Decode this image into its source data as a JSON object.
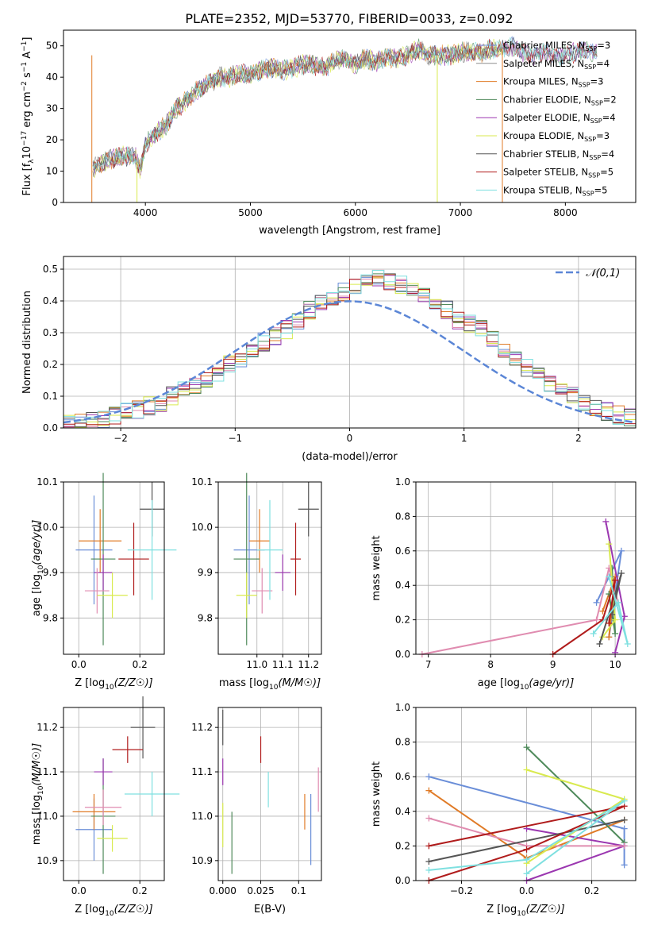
{
  "figure": {
    "title": "PLATE=2352, MJD=53770, FIBERID=0033, z=0.092",
    "legend_labels": [
      [
        "Chabrier MILES, N",
        "=3"
      ],
      [
        "Salpeter MILES, N",
        "=4"
      ],
      [
        "Kroupa MILES, N",
        "=3"
      ],
      [
        "Chabrier ELODIE, N",
        "=2"
      ],
      [
        "Salpeter ELODIE, N",
        "=4"
      ],
      [
        "Kroupa ELODIE, N",
        "=3"
      ],
      [
        "Chabrier STELIB, N",
        "=4"
      ],
      [
        "Salpeter STELIB, N",
        "=5"
      ],
      [
        "Kroupa STELIB, N",
        "=5"
      ]
    ],
    "legend_sub": "SSP",
    "colors": [
      "#6a8ed8",
      "#8e8e8e",
      "#e07b27",
      "#4f8a5b",
      "#9b37b0",
      "#d9ea4f",
      "#555555",
      "#b01c1c",
      "#7fe0e0"
    ],
    "err_colors": [
      "#6a8ed8",
      "#e07b27",
      "#4f8a5b",
      "#9b37b0",
      "#e08cb0",
      "#d9ea4f",
      "#555555",
      "#b01c1c",
      "#7fe0e0"
    ]
  },
  "chart_data": [
    {
      "type": "line",
      "title": "PLATE=2352, MJD=53770, FIBERID=0033, z=0.092",
      "xlabel": "wavelength [Angstrom, rest frame]",
      "ylabel": "Flux [f",
      "xlim": [
        3220,
        8670
      ],
      "ylim": [
        0,
        55
      ],
      "xticks": [
        4000,
        5000,
        6000,
        7000,
        8000
      ],
      "yticks": [
        0,
        10,
        20,
        30,
        40,
        50
      ],
      "continuum": [
        [
          3500,
          11
        ],
        [
          3600,
          13
        ],
        [
          3700,
          14
        ],
        [
          3800,
          15
        ],
        [
          3900,
          15
        ],
        [
          3950,
          10
        ],
        [
          4000,
          19
        ],
        [
          4100,
          22
        ],
        [
          4200,
          25
        ],
        [
          4300,
          30
        ],
        [
          4400,
          33
        ],
        [
          4500,
          36
        ],
        [
          4600,
          38
        ],
        [
          4700,
          40
        ],
        [
          4800,
          40
        ],
        [
          4900,
          41
        ],
        [
          5000,
          41
        ],
        [
          5100,
          42
        ],
        [
          5200,
          43
        ],
        [
          5300,
          42
        ],
        [
          5400,
          43
        ],
        [
          5500,
          44
        ],
        [
          5600,
          44
        ],
        [
          5700,
          43
        ],
        [
          5800,
          45
        ],
        [
          5900,
          46
        ],
        [
          6000,
          44
        ],
        [
          6100,
          46
        ],
        [
          6200,
          45
        ],
        [
          6300,
          46
        ],
        [
          6400,
          46
        ],
        [
          6500,
          47
        ],
        [
          6600,
          49
        ],
        [
          6700,
          47
        ],
        [
          6800,
          47
        ],
        [
          6900,
          47
        ],
        [
          7000,
          48
        ],
        [
          7100,
          48
        ],
        [
          7200,
          48
        ],
        [
          7300,
          49
        ],
        [
          7400,
          49
        ],
        [
          7500,
          50
        ],
        [
          7600,
          48
        ],
        [
          7700,
          47
        ],
        [
          7800,
          48
        ],
        [
          7900,
          47
        ],
        [
          8000,
          47
        ],
        [
          8100,
          48
        ],
        [
          8200,
          49
        ],
        [
          8300,
          47
        ]
      ],
      "grid": false,
      "legend": "top-right"
    },
    {
      "type": "bar",
      "xlabel": "(data-model)/error",
      "ylabel": "Normed distribution",
      "xlim": [
        -2.5,
        2.5
      ],
      "ylim": [
        0,
        0.54
      ],
      "xticks": [
        -2,
        -1,
        0,
        1,
        2
      ],
      "yticks": [
        0.0,
        0.1,
        0.2,
        0.3,
        0.4,
        0.5
      ],
      "bin_width": 0.1,
      "bin_start": -2.5,
      "histogram_base": [
        0.02,
        0.02,
        0.03,
        0.03,
        0.04,
        0.05,
        0.06,
        0.07,
        0.08,
        0.1,
        0.12,
        0.13,
        0.15,
        0.17,
        0.2,
        0.22,
        0.25,
        0.27,
        0.29,
        0.31,
        0.34,
        0.37,
        0.39,
        0.41,
        0.43,
        0.45,
        0.47,
        0.47,
        0.46,
        0.45,
        0.43,
        0.41,
        0.39,
        0.37,
        0.34,
        0.33,
        0.32,
        0.28,
        0.25,
        0.22,
        0.19,
        0.16,
        0.14,
        0.12,
        0.1,
        0.08,
        0.06,
        0.05,
        0.04,
        0.03
      ],
      "normal_curve_label": "𝒩(0,1)",
      "grid": true,
      "legend": "top-right"
    },
    {
      "type": "scatter",
      "xlabel": "Z [log",
      "ylabel": "age  [log",
      "xlim": [
        -0.05,
        0.28
      ],
      "ylim": [
        9.72,
        10.1
      ],
      "xticks": [
        0.0,
        0.2
      ],
      "yticks": [
        9.8,
        9.9,
        10.0,
        10.1
      ],
      "points": [
        [
          0.05,
          9.95,
          0.06,
          0.12
        ],
        [
          0.07,
          9.97,
          0.07,
          0.07
        ],
        [
          0.08,
          9.93,
          0.04,
          0.19
        ],
        [
          0.08,
          9.9,
          0.03,
          0.04
        ],
        [
          0.06,
          9.86,
          0.04,
          0.05
        ],
        [
          0.11,
          9.85,
          0.05,
          0.05
        ],
        [
          0.24,
          10.04,
          0.04,
          0.06
        ],
        [
          0.18,
          9.93,
          0.05,
          0.08
        ],
        [
          0.24,
          9.95,
          0.08,
          0.11
        ]
      ],
      "grid": true
    },
    {
      "type": "scatter",
      "xlabel": "mass [log",
      "ylabel": "",
      "xlim": [
        10.85,
        11.25
      ],
      "ylim": [
        9.72,
        10.1
      ],
      "xticks": [
        11.0,
        11.1,
        11.2
      ],
      "yticks": [
        9.8,
        9.9,
        10.0,
        10.1
      ],
      "points": [
        [
          10.97,
          9.95,
          0.06,
          0.12
        ],
        [
          11.01,
          9.97,
          0.04,
          0.07
        ],
        [
          10.96,
          9.93,
          0.05,
          0.19
        ],
        [
          11.1,
          9.9,
          0.03,
          0.04
        ],
        [
          11.02,
          9.86,
          0.04,
          0.05
        ],
        [
          10.96,
          9.85,
          0.04,
          0.05
        ],
        [
          11.2,
          10.04,
          0.04,
          0.06
        ],
        [
          11.15,
          9.93,
          0.02,
          0.08
        ],
        [
          11.05,
          9.95,
          0.05,
          0.11
        ]
      ],
      "grid": true
    },
    {
      "type": "line",
      "xlabel": "age  [log",
      "ylabel": "mass weight",
      "xlim": [
        6.8,
        10.33
      ],
      "ylim": [
        0.0,
        1.0
      ],
      "xticks": [
        7,
        8,
        9,
        10
      ],
      "yticks": [
        0.0,
        0.2,
        0.4,
        0.6,
        0.8,
        1.0
      ],
      "series": [
        {
          "points": [
            [
              9.7,
              0.3
            ],
            [
              10.1,
              0.6
            ],
            [
              9.9,
              0.1
            ]
          ]
        },
        {
          "points": [
            [
              9.8,
              0.25
            ],
            [
              10.0,
              0.45
            ],
            [
              9.9,
              0.1
            ]
          ]
        },
        {
          "points": [
            [
              9.9,
              0.35
            ],
            [
              10.0,
              0.12
            ],
            [
              9.95,
              0.5
            ]
          ]
        },
        {
          "points": [
            [
              9.85,
              0.77
            ],
            [
              10.15,
              0.22
            ],
            [
              10.0,
              0.01
            ]
          ]
        },
        {
          "points": [
            [
              6.9,
              0.0
            ],
            [
              9.7,
              0.2
            ],
            [
              9.9,
              0.5
            ],
            [
              10.05,
              0.3
            ]
          ]
        },
        {
          "points": [
            [
              9.9,
              0.64
            ],
            [
              10.0,
              0.2
            ],
            [
              9.8,
              0.1
            ]
          ]
        },
        {
          "points": [
            [
              9.75,
              0.06
            ],
            [
              10.1,
              0.47
            ],
            [
              9.95,
              0.23
            ]
          ]
        },
        {
          "points": [
            [
              9.0,
              0.0
            ],
            [
              9.8,
              0.2
            ],
            [
              10.0,
              0.43
            ],
            [
              9.9,
              0.18
            ]
          ]
        },
        {
          "points": [
            [
              9.65,
              0.12
            ],
            [
              10.05,
              0.3
            ],
            [
              10.2,
              0.06
            ],
            [
              9.9,
              0.45
            ]
          ]
        }
      ],
      "grid": true
    },
    {
      "type": "scatter",
      "xlabel": "Z [log",
      "ylabel": "mass [log",
      "xlim": [
        -0.05,
        0.28
      ],
      "ylim": [
        10.855,
        11.245
      ],
      "xticks": [
        0.0,
        0.2
      ],
      "yticks": [
        10.9,
        11.0,
        11.1,
        11.2
      ],
      "points": [
        [
          0.05,
          10.97,
          0.06,
          0.07
        ],
        [
          0.05,
          11.01,
          0.07,
          0.04
        ],
        [
          0.08,
          11.0,
          0.04,
          0.13
        ],
        [
          0.08,
          11.1,
          0.03,
          0.03
        ],
        [
          0.08,
          11.02,
          0.06,
          0.04
        ],
        [
          0.11,
          10.95,
          0.05,
          0.03
        ],
        [
          0.21,
          11.2,
          0.04,
          0.07
        ],
        [
          0.16,
          11.15,
          0.05,
          0.03
        ],
        [
          0.24,
          11.05,
          0.09,
          0.05
        ]
      ],
      "grid": true
    },
    {
      "type": "scatter",
      "xlabel": "E(B-V)",
      "ylabel": "",
      "xlim": [
        -0.003,
        0.065
      ],
      "ylim": [
        10.855,
        11.245
      ],
      "xticks": [
        0.0,
        0.025,
        0.05
      ],
      "yticks": [
        10.9,
        11.0,
        11.1,
        11.2
      ],
      "points": [
        [
          0.058,
          10.97,
          0,
          0.08
        ],
        [
          0.054,
          11.01,
          0,
          0.04
        ],
        [
          0.006,
          10.94,
          0,
          0.07
        ],
        [
          0.0,
          11.1,
          0,
          0.03
        ],
        [
          0.063,
          11.06,
          0,
          0.05
        ],
        [
          0.0,
          10.98,
          0,
          0.05
        ],
        [
          0.0,
          11.2,
          0,
          0.04
        ],
        [
          0.025,
          11.15,
          0,
          0.03
        ],
        [
          0.03,
          11.06,
          0,
          0.04
        ]
      ],
      "grid": true
    },
    {
      "type": "line",
      "xlabel": "Z [log",
      "ylabel": "mass weight",
      "xlim": [
        -0.34,
        0.335
      ],
      "ylim": [
        0.0,
        1.0
      ],
      "xticks": [
        -0.2,
        0.0,
        0.2
      ],
      "yticks": [
        0.0,
        0.2,
        0.4,
        0.6,
        0.8,
        1.0
      ],
      "series": [
        {
          "points": [
            [
              -0.3,
              0.6
            ],
            [
              0.3,
              0.3
            ],
            [
              0.3,
              0.09
            ]
          ]
        },
        {
          "points": [
            [
              -0.3,
              0.52
            ],
            [
              0.0,
              0.13
            ],
            [
              0.3,
              0.35
            ]
          ]
        },
        {
          "points": [
            [
              0.0,
              0.77
            ],
            [
              0.3,
              0.22
            ]
          ]
        },
        {
          "points": [
            [
              0.0,
              0.0
            ],
            [
              0.3,
              0.2
            ],
            [
              0.0,
              0.3
            ]
          ]
        },
        {
          "points": [
            [
              -0.3,
              0.36
            ],
            [
              0.0,
              0.2
            ],
            [
              0.3,
              0.2
            ]
          ]
        },
        {
          "points": [
            [
              0.0,
              0.64
            ],
            [
              0.3,
              0.47
            ],
            [
              0.0,
              0.1
            ]
          ]
        },
        {
          "points": [
            [
              -0.3,
              0.11
            ],
            [
              0.3,
              0.35
            ]
          ]
        },
        {
          "points": [
            [
              -0.3,
              0.0
            ],
            [
              0.0,
              0.18
            ],
            [
              0.3,
              0.43
            ],
            [
              -0.3,
              0.2
            ]
          ]
        },
        {
          "points": [
            [
              -0.3,
              0.06
            ],
            [
              0.0,
              0.12
            ],
            [
              0.3,
              0.46
            ],
            [
              0.0,
              0.04
            ]
          ]
        }
      ],
      "grid": true
    }
  ]
}
